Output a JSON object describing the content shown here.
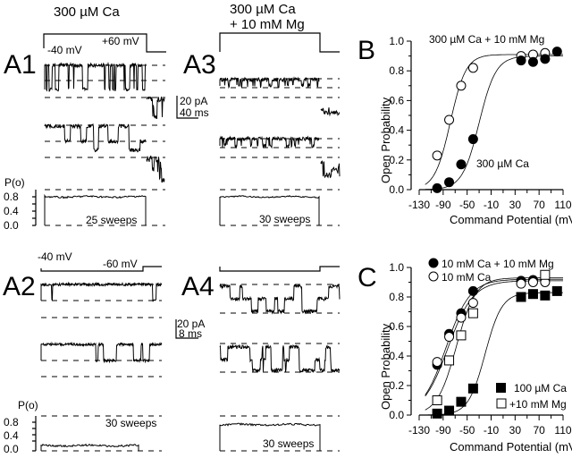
{
  "figure": {
    "panels": {
      "A1": {
        "label": "A1",
        "condition": "300 µM Ca",
        "holding_label": "-40 mV",
        "step_label": "+60 mV",
        "po_label": "P(o)",
        "po_ticks": [
          "0.8",
          "0.4",
          "0.0"
        ],
        "sweeps": "25 sweeps",
        "mean_po": 0.8
      },
      "A2": {
        "label": "A2",
        "holding_label": "-40 mV",
        "step_label": "-60 mV",
        "po_label": "P(o)",
        "po_ticks": [
          "0.8",
          "0.4",
          "0.0"
        ],
        "sweeps": "30 sweeps",
        "mean_po": 0.15
      },
      "A3": {
        "label": "A3",
        "condition_line1": "300 µM Ca",
        "condition_line2": "+ 10 mM Mg",
        "scale_current": "20 pA",
        "scale_time": "40 ms",
        "sweeps": "30 sweeps",
        "mean_po": 0.8
      },
      "A4": {
        "label": "A4",
        "scale_current": "20 pA",
        "scale_time": "8 ms",
        "sweeps": "30 sweeps",
        "mean_po": 0.75
      }
    }
  },
  "chart_data": [
    {
      "panel": "B",
      "type": "scatter",
      "title": "",
      "xlabel": "Command Potential (mV)",
      "ylabel": "Open Probability",
      "xlim": [
        -130,
        110
      ],
      "ylim": [
        0.0,
        1.0
      ],
      "xticks": [
        "-130",
        "-90",
        "-50",
        "-10",
        "30",
        "70",
        "110"
      ],
      "yticks": [
        "0.0",
        "0.2",
        "0.4",
        "0.6",
        "0.8",
        "1.0"
      ],
      "grid": false,
      "series": [
        {
          "name": "300 µM Ca + 10 mM Mg",
          "marker": "open-circle",
          "x": [
            -100,
            -80,
            -60,
            -40,
            40,
            60,
            80
          ],
          "y": [
            0.23,
            0.47,
            0.7,
            0.82,
            0.9,
            0.91,
            0.92
          ],
          "fit": {
            "max": 0.91,
            "v_half": -78,
            "slope": 13
          }
        },
        {
          "name": "300 µM Ca",
          "marker": "filled-circle",
          "x": [
            -100,
            -80,
            -60,
            -40,
            40,
            60,
            80,
            100
          ],
          "y": [
            0.01,
            0.05,
            0.17,
            0.34,
            0.87,
            0.86,
            0.88,
            0.93
          ],
          "fit": {
            "max": 0.9,
            "v_half": -30,
            "slope": 14
          }
        }
      ],
      "annotations": [
        "300 µM Ca + 10 mM Mg",
        "300 µM Ca"
      ]
    },
    {
      "panel": "C",
      "type": "scatter",
      "title": "",
      "xlabel": "Command Potential (mV)",
      "ylabel": "Open Probability",
      "xlim": [
        -130,
        110
      ],
      "ylim": [
        0.0,
        1.0
      ],
      "xticks": [
        "-130",
        "-90",
        "-50",
        "-10",
        "30",
        "70",
        "110"
      ],
      "yticks": [
        "0.0",
        "0.2",
        "0.4",
        "0.6",
        "0.8",
        "1.0"
      ],
      "grid": false,
      "legend_placement": "top-left and bottom-right",
      "series": [
        {
          "name": "10 mM Ca + 10 mM Mg",
          "marker": "filled-circle",
          "x": [
            -100,
            -80,
            -60,
            -40,
            40,
            60,
            80
          ],
          "y": [
            0.34,
            0.55,
            0.69,
            0.84,
            0.91,
            0.915,
            0.91
          ],
          "fit": {
            "max": 0.92,
            "v_half": -85,
            "slope": 20
          }
        },
        {
          "name": "10 mM Ca",
          "marker": "open-circle",
          "x": [
            -100,
            -80,
            -60,
            -40,
            40,
            60,
            80
          ],
          "y": [
            0.36,
            0.53,
            0.66,
            0.76,
            0.89,
            0.9,
            0.9
          ],
          "fit": {
            "max": 0.91,
            "v_half": -82,
            "slope": 21
          }
        },
        {
          "name": "100 µM Ca",
          "marker": "filled-square",
          "x": [
            -100,
            -80,
            -60,
            -40,
            40,
            60,
            80,
            100
          ],
          "y": [
            0.01,
            0.03,
            0.09,
            0.18,
            0.8,
            0.82,
            0.81,
            0.84
          ],
          "fit": {
            "max": 0.83,
            "v_half": -20,
            "slope": 14
          }
        },
        {
          "name": "+10 mM Mg",
          "marker": "open-square",
          "x": [
            -100,
            -80,
            -60,
            -40,
            80
          ],
          "y": [
            0.1,
            0.37,
            0.54,
            0.69,
            0.95
          ],
          "fit": {
            "max": 0.93,
            "v_half": -68,
            "slope": 16
          }
        }
      ]
    }
  ],
  "labels": {
    "B": "B",
    "C": "C",
    "B_top_note": "300 µM Ca + 10 mM Mg",
    "B_bottom_note": "300 µM Ca",
    "C_legend": [
      "10 mM Ca + 10 mM Mg",
      "10 mM Ca",
      "100 µM Ca",
      "+10 mM Mg"
    ]
  }
}
